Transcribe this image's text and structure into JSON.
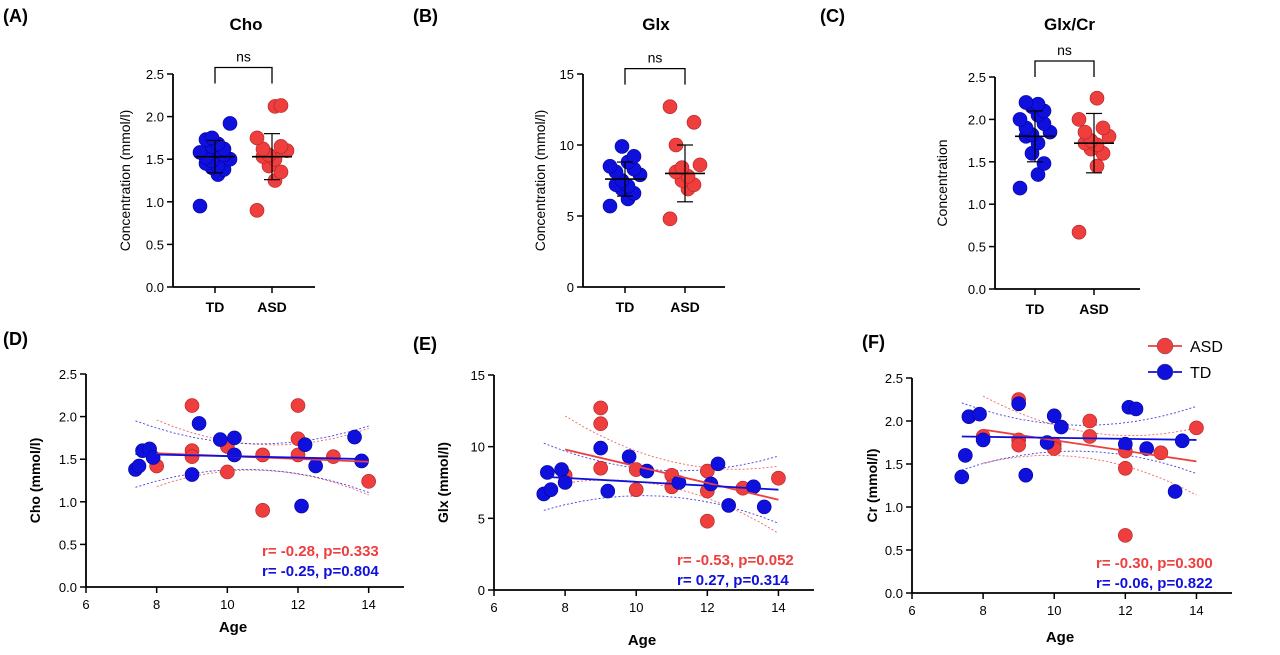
{
  "colors": {
    "td": "#1010dd",
    "asd": "#ee3e3e",
    "axis": "#000000"
  },
  "legend": [
    {
      "label": "ASD",
      "color": "#ee3e3e"
    },
    {
      "label": "TD",
      "color": "#1010dd"
    }
  ],
  "chart_data": [
    {
      "panel": "(A)",
      "type": "scatter",
      "title": "Cho",
      "ylabel": "Concentration (mmol/l)",
      "categories": [
        "TD",
        "ASD"
      ],
      "ylim": [
        0,
        2.5
      ],
      "yticks": [
        "0.0",
        "0.5",
        "1.0",
        "1.5",
        "2.0",
        "2.5"
      ],
      "significance": "ns",
      "groups": [
        {
          "name": "TD",
          "mean": 1.53,
          "sd": 0.19,
          "values": [
            0.95,
            1.32,
            1.38,
            1.4,
            1.42,
            1.45,
            1.48,
            1.5,
            1.52,
            1.55,
            1.58,
            1.6,
            1.62,
            1.65,
            1.68,
            1.73,
            1.75,
            1.92
          ]
        },
        {
          "name": "ASD",
          "mean": 1.53,
          "sd": 0.27,
          "values": [
            0.9,
            1.25,
            1.35,
            1.42,
            1.5,
            1.53,
            1.55,
            1.6,
            1.62,
            1.65,
            1.75,
            2.12,
            2.13
          ]
        }
      ]
    },
    {
      "panel": "(B)",
      "type": "scatter",
      "title": "Glx",
      "ylabel": "Concentration (mmol/l)",
      "categories": [
        "TD",
        "ASD"
      ],
      "ylim": [
        0,
        15
      ],
      "yticks": [
        "0",
        "5",
        "10",
        "15"
      ],
      "significance": "ns",
      "groups": [
        {
          "name": "TD",
          "mean": 7.6,
          "sd": 1.2,
          "values": [
            5.7,
            6.2,
            6.6,
            6.9,
            7.1,
            7.2,
            7.5,
            7.9,
            8.1,
            8.3,
            8.5,
            8.8,
            9.2,
            9.9
          ]
        },
        {
          "name": "ASD",
          "mean": 8.0,
          "sd": 2.0,
          "values": [
            4.8,
            6.9,
            7.2,
            7.5,
            7.8,
            8.1,
            8.4,
            8.6,
            10.0,
            11.6,
            12.7
          ]
        }
      ]
    },
    {
      "panel": "(C)",
      "type": "scatter",
      "title": "Glx/Cr",
      "ylabel": "Concentration",
      "categories": [
        "TD",
        "ASD"
      ],
      "ylim": [
        0,
        2.5
      ],
      "yticks": [
        "0.0",
        "0.5",
        "1.0",
        "1.5",
        "2.0",
        "2.5"
      ],
      "significance": "ns",
      "groups": [
        {
          "name": "TD",
          "mean": 1.8,
          "sd": 0.3,
          "values": [
            1.19,
            1.35,
            1.48,
            1.6,
            1.72,
            1.8,
            1.82,
            1.85,
            1.9,
            1.95,
            2.0,
            2.05,
            2.1,
            2.15,
            2.18,
            2.2
          ]
        },
        {
          "name": "ASD",
          "mean": 1.72,
          "sd": 0.35,
          "values": [
            0.67,
            1.45,
            1.6,
            1.65,
            1.7,
            1.72,
            1.75,
            1.8,
            1.85,
            1.9,
            2.0,
            2.25
          ]
        }
      ]
    },
    {
      "panel": "(D)",
      "type": "scatter",
      "xlabel": "Age",
      "ylabel": "Cho (mmol/l)",
      "xlim": [
        6,
        15
      ],
      "xticks": [
        "6",
        "8",
        "10",
        "12",
        "14"
      ],
      "ylim": [
        0,
        2.5
      ],
      "yticks": [
        "0.0",
        "0.5",
        "1.0",
        "1.5",
        "2.0",
        "2.5"
      ],
      "series": [
        {
          "name": "ASD",
          "stat": "r= -0.28, p=0.333",
          "fit": [
            [
              8,
              1.57
            ],
            [
              14,
              1.47
            ]
          ],
          "points": [
            [
              8,
              1.42
            ],
            [
              9,
              2.13
            ],
            [
              9,
              1.6
            ],
            [
              9,
              1.53
            ],
            [
              10,
              1.65
            ],
            [
              10,
              1.35
            ],
            [
              11,
              1.55
            ],
            [
              11,
              0.9
            ],
            [
              12,
              2.13
            ],
            [
              12,
              1.74
            ],
            [
              12,
              1.55
            ],
            [
              13,
              1.53
            ],
            [
              14,
              1.24
            ]
          ]
        },
        {
          "name": "TD",
          "stat": "r= -0.25, p=0.804",
          "fit": [
            [
              7.4,
              1.56
            ],
            [
              14,
              1.5
            ]
          ],
          "points": [
            [
              7.4,
              1.38
            ],
            [
              7.5,
              1.42
            ],
            [
              7.6,
              1.6
            ],
            [
              7.8,
              1.62
            ],
            [
              7.9,
              1.52
            ],
            [
              9,
              1.32
            ],
            [
              9.2,
              1.92
            ],
            [
              9.8,
              1.73
            ],
            [
              10.2,
              1.75
            ],
            [
              10.2,
              1.55
            ],
            [
              12.2,
              1.67
            ],
            [
              12.5,
              1.42
            ],
            [
              12.1,
              0.95
            ],
            [
              13.6,
              1.76
            ],
            [
              13.8,
              1.48
            ]
          ]
        }
      ]
    },
    {
      "panel": "(E)",
      "type": "scatter",
      "xlabel": "Age",
      "ylabel": "Glx (mmol/l)",
      "xlim": [
        6,
        15
      ],
      "xticks": [
        "6",
        "8",
        "10",
        "12",
        "14"
      ],
      "ylim": [
        0,
        15
      ],
      "yticks": [
        "0",
        "5",
        "10",
        "15"
      ],
      "series": [
        {
          "name": "ASD",
          "stat": "r= -0.53, p=0.052",
          "fit": [
            [
              8,
              9.8
            ],
            [
              14,
              6.3
            ]
          ],
          "points": [
            [
              8,
              8.0
            ],
            [
              9,
              12.7
            ],
            [
              9,
              11.6
            ],
            [
              9,
              8.5
            ],
            [
              10,
              8.4
            ],
            [
              10,
              7.0
            ],
            [
              11,
              8.0
            ],
            [
              11,
              7.2
            ],
            [
              12,
              8.3
            ],
            [
              12,
              6.9
            ],
            [
              12,
              4.8
            ],
            [
              13,
              7.1
            ],
            [
              14,
              7.8
            ]
          ]
        },
        {
          "name": "TD",
          "stat": "r=  0.27, p=0.314",
          "fit": [
            [
              7.4,
              7.9
            ],
            [
              14,
              7.0
            ]
          ],
          "points": [
            [
              7.4,
              6.7
            ],
            [
              7.5,
              8.2
            ],
            [
              7.6,
              7.0
            ],
            [
              7.9,
              8.4
            ],
            [
              8.0,
              7.5
            ],
            [
              9,
              9.9
            ],
            [
              9.2,
              6.9
            ],
            [
              9.8,
              9.3
            ],
            [
              10.3,
              8.3
            ],
            [
              11.2,
              7.5
            ],
            [
              12.1,
              7.4
            ],
            [
              12.3,
              8.8
            ],
            [
              12.6,
              5.9
            ],
            [
              13.3,
              7.2
            ],
            [
              13.6,
              5.8
            ]
          ]
        }
      ]
    },
    {
      "panel": "(F)",
      "type": "scatter",
      "xlabel": "Age",
      "ylabel": "Cr (mmol/l)",
      "xlim": [
        6,
        15
      ],
      "xticks": [
        "6",
        "8",
        "10",
        "12",
        "14"
      ],
      "ylim": [
        0,
        2.5
      ],
      "yticks": [
        "0.0",
        "0.5",
        "1.0",
        "1.5",
        "2.0",
        "2.5"
      ],
      "series": [
        {
          "name": "ASD",
          "stat": "r= -0.30, p=0.300",
          "fit": [
            [
              8,
              1.9
            ],
            [
              14,
              1.53
            ]
          ],
          "points": [
            [
              8,
              1.82
            ],
            [
              9,
              2.25
            ],
            [
              9,
              1.78
            ],
            [
              9,
              1.72
            ],
            [
              10,
              1.73
            ],
            [
              10,
              1.68
            ],
            [
              11,
              2.0
            ],
            [
              11,
              1.82
            ],
            [
              12,
              1.45
            ],
            [
              12,
              1.65
            ],
            [
              12,
              0.67
            ],
            [
              13,
              1.63
            ],
            [
              14,
              1.92
            ]
          ]
        },
        {
          "name": "TD",
          "stat": "r= -0.06, p=0.822",
          "fit": [
            [
              7.4,
              1.82
            ],
            [
              14,
              1.78
            ]
          ],
          "points": [
            [
              7.4,
              1.35
            ],
            [
              7.5,
              1.6
            ],
            [
              7.6,
              2.05
            ],
            [
              7.9,
              2.08
            ],
            [
              8.0,
              1.78
            ],
            [
              9,
              2.2
            ],
            [
              9.2,
              1.37
            ],
            [
              9.8,
              1.75
            ],
            [
              10,
              2.06
            ],
            [
              10.2,
              1.93
            ],
            [
              12,
              1.73
            ],
            [
              12.1,
              2.16
            ],
            [
              12.3,
              2.14
            ],
            [
              12.6,
              1.68
            ],
            [
              13.4,
              1.18
            ],
            [
              13.6,
              1.77
            ]
          ]
        }
      ]
    }
  ]
}
